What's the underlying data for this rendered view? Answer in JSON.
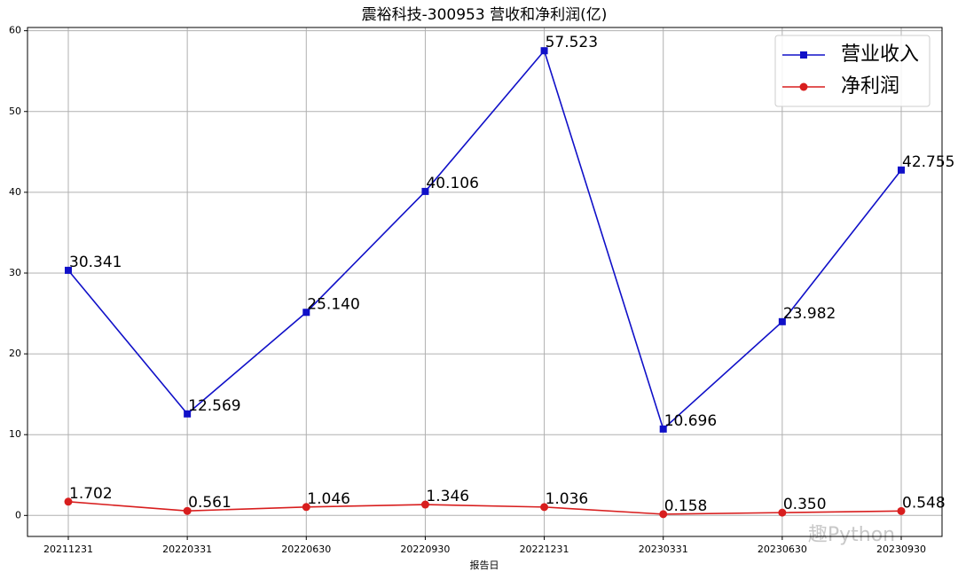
{
  "chart_data": {
    "type": "line",
    "title": "震裕科技-300953 营收和净利润(亿)",
    "x_label": "报告日",
    "categories": [
      "20211231",
      "20220331",
      "20220630",
      "20220930",
      "20221231",
      "20230331",
      "20230630",
      "20230930"
    ],
    "series": [
      {
        "name": "营业收入",
        "color": "#1010c8",
        "marker": "square",
        "values": [
          30.341,
          12.569,
          25.14,
          40.106,
          57.523,
          10.696,
          23.982,
          42.755
        ],
        "value_labels": [
          "30.341",
          "12.569",
          "25.140",
          "40.106",
          "57.523",
          "10.696",
          "23.982",
          "42.755"
        ]
      },
      {
        "name": "净利润",
        "color": "#d81e1e",
        "marker": "circle",
        "values": [
          1.702,
          0.561,
          1.046,
          1.346,
          1.036,
          0.158,
          0.35,
          0.548
        ],
        "value_labels": [
          "1.702",
          "0.561",
          "1.046",
          "1.346",
          "1.036",
          "0.158",
          "0.350",
          "0.548"
        ]
      }
    ],
    "ylim": [
      -2.6,
      60.4
    ],
    "yticks": [
      0,
      10,
      20,
      30,
      40,
      50,
      60
    ],
    "grid": true,
    "legend": "upper right",
    "watermark": "趣Python"
  }
}
